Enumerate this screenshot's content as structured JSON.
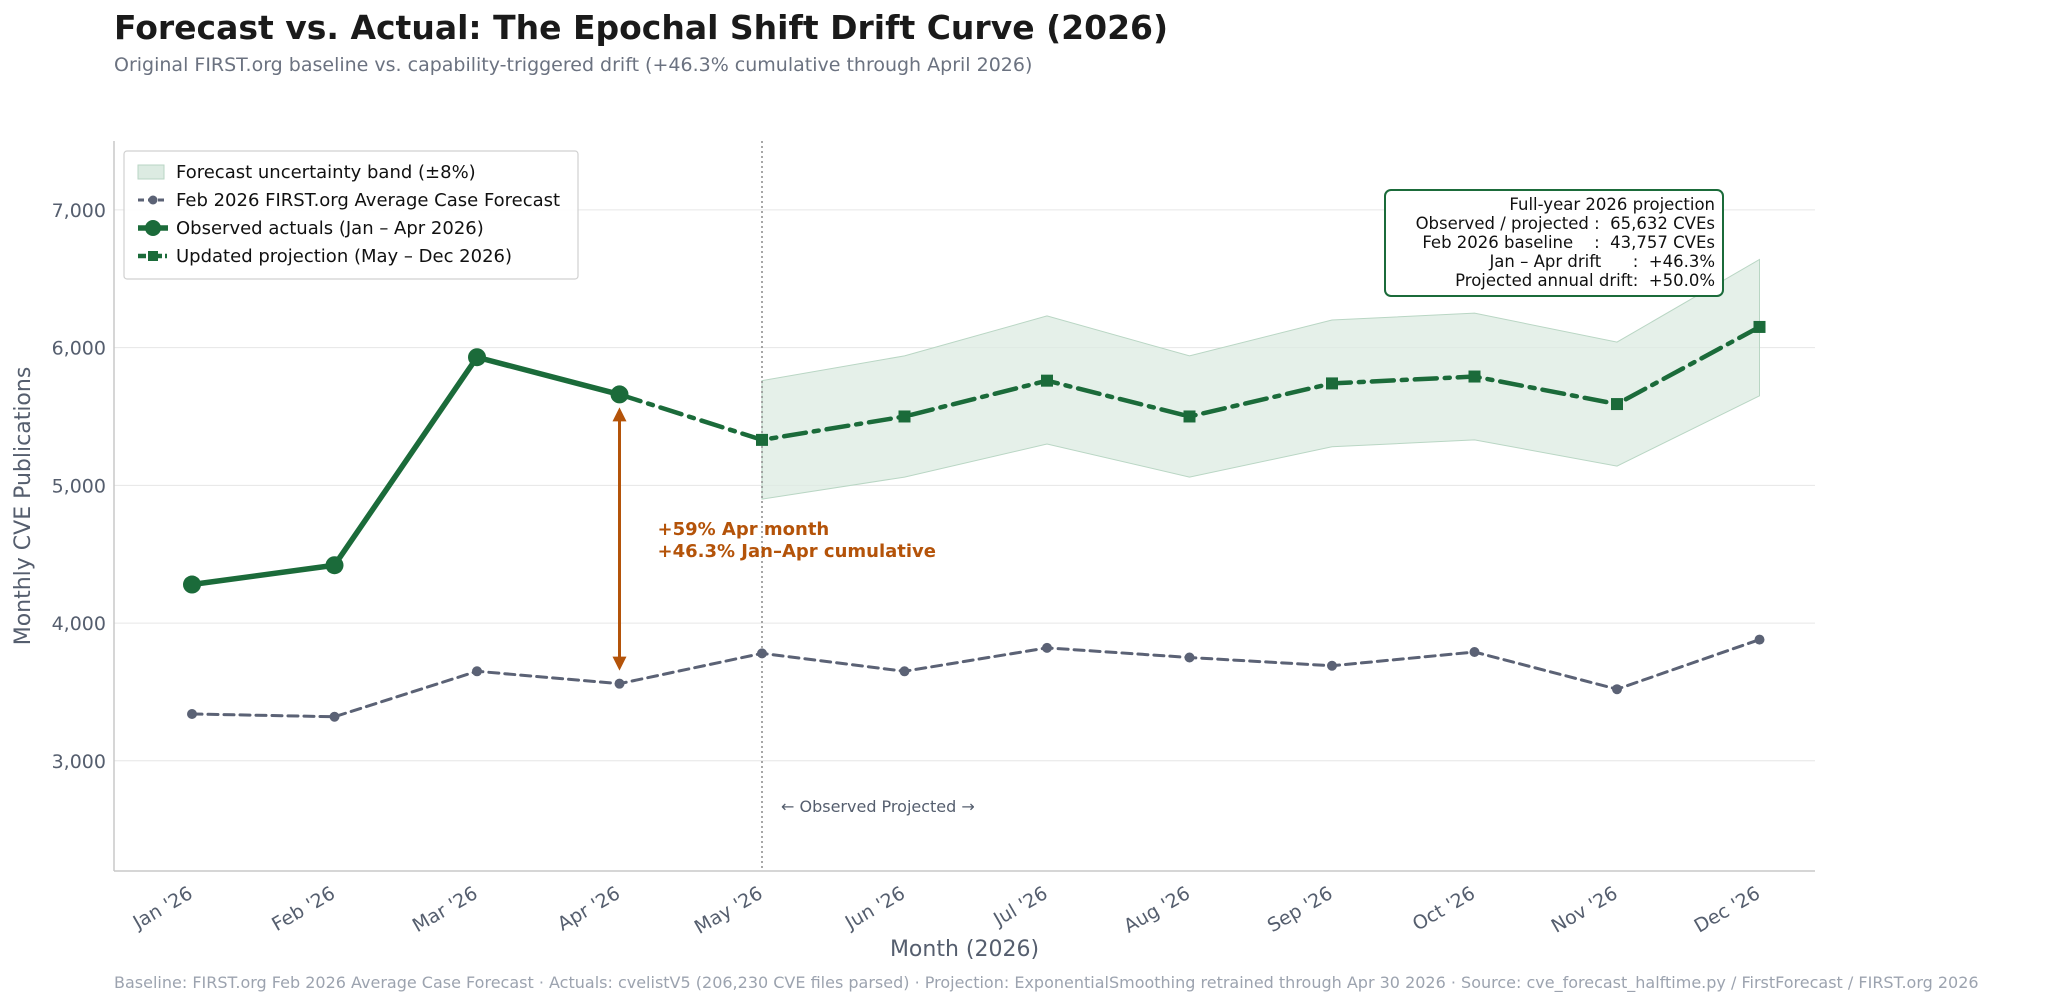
{
  "chart_data": {
    "type": "line",
    "title": "Forecast vs. Actual: The Epochal Shift Drift Curve  (2026)",
    "subtitle": "Original FIRST.org baseline vs. capability-triggered drift  (+46.3% cumulative through April 2026)",
    "xlabel": "Month  (2026)",
    "ylabel": "Monthly CVE Publications",
    "ylim": [
      2200,
      7500
    ],
    "yticks": [
      3000,
      4000,
      5000,
      6000,
      7000
    ],
    "ytick_labels": [
      "3,000",
      "4,000",
      "5,000",
      "6,000",
      "7,000"
    ],
    "categories": [
      "Jan '26",
      "Feb '26",
      "Mar '26",
      "Apr '26",
      "May '26",
      "Jun '26",
      "Jul '26",
      "Aug '26",
      "Sep '26",
      "Oct '26",
      "Nov '26",
      "Dec '26"
    ],
    "grid": "horizontal",
    "legend_position": "top-left",
    "series": [
      {
        "name": "Feb 2026 FIRST.org Average Case Forecast",
        "color": "#5b6275",
        "style": "dashed-circle",
        "values": [
          3340,
          3320,
          3650,
          3560,
          3780,
          3650,
          3820,
          3750,
          3690,
          3790,
          3520,
          3880
        ]
      },
      {
        "name": "Observed actuals  (Jan – Apr 2026)",
        "color": "#1b6b3a",
        "style": "solid-circle",
        "values": [
          4280,
          4420,
          5930,
          5660,
          null,
          null,
          null,
          null,
          null,
          null,
          null,
          null
        ]
      },
      {
        "name": "Updated projection  (May – Dec 2026)",
        "color": "#1b6b3a",
        "style": "dashdot-square",
        "values": [
          null,
          null,
          null,
          5660,
          5330,
          5500,
          5760,
          5500,
          5740,
          5790,
          5590,
          6150
        ]
      }
    ],
    "band": {
      "name": "Forecast uncertainty band  (±8%)",
      "color": "#dcebe2",
      "start_index": 4,
      "lower": [
        4900,
        5060,
        5300,
        5060,
        5280,
        5330,
        5140,
        5650
      ],
      "upper": [
        5760,
        5940,
        6230,
        5940,
        6200,
        6250,
        6040,
        6640
      ]
    },
    "divider": {
      "x_value": 4,
      "label": "← Observed   Projected →"
    },
    "drift_arrow": {
      "x_index": 3,
      "from": 3560,
      "to": 5660,
      "line1": "+59%  Apr month",
      "line2": "+46.3%  Jan–Apr cumulative"
    },
    "summary_box": {
      "lines": [
        "Full-year 2026 projection",
        "Observed / projected :  65,632 CVEs",
        "Feb 2026 baseline    :  43,757 CVEs",
        "Jan – Apr drift      :  +46.3%",
        "Projected annual drift:  +50.0%"
      ]
    },
    "footer": "Baseline: FIRST.org Feb 2026 Average Case Forecast  ·  Actuals: cvelistV5 (206,230 CVE files parsed)  ·  Projection: ExponentialSmoothing retrained through Apr 30 2026  ·  Source: cve_forecast_halftime.py / FirstForecast / FIRST.org 2026"
  }
}
